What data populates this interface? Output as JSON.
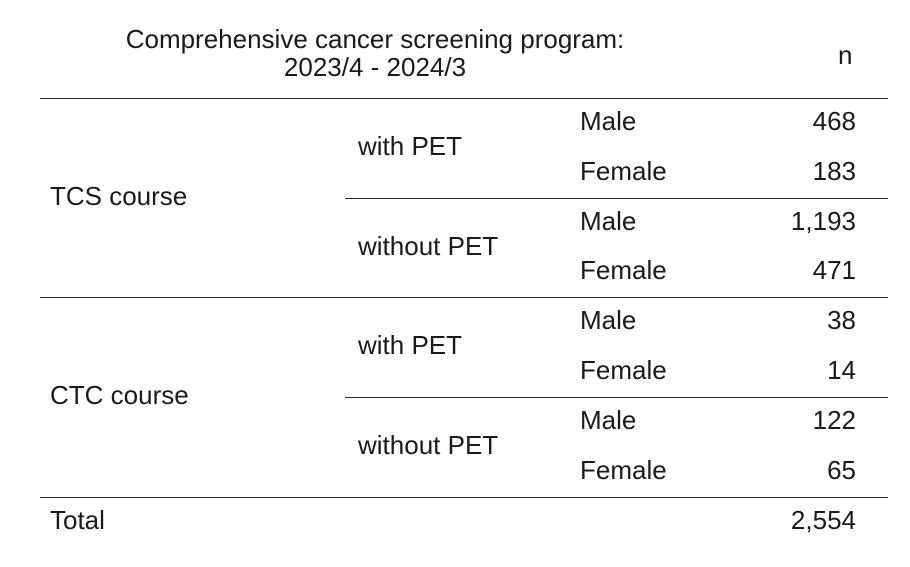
{
  "header": {
    "title_line1": "Comprehensive cancer screening program:",
    "title_line2": "2023/4 - 2024/3",
    "count_header": "n"
  },
  "groups": [
    {
      "course": "TCS course",
      "subgroups": [
        {
          "label": "with PET",
          "rows": [
            {
              "sex": "Male",
              "n": "468"
            },
            {
              "sex": "Female",
              "n": "183"
            }
          ]
        },
        {
          "label": "without PET",
          "rows": [
            {
              "sex": "Male",
              "n": "1,193"
            },
            {
              "sex": "Female",
              "n": "471"
            }
          ]
        }
      ]
    },
    {
      "course": "CTC course",
      "subgroups": [
        {
          "label": "with PET",
          "rows": [
            {
              "sex": "Male",
              "n": "38"
            },
            {
              "sex": "Female",
              "n": "14"
            }
          ]
        },
        {
          "label": "without PET",
          "rows": [
            {
              "sex": "Male",
              "n": "122"
            },
            {
              "sex": "Female",
              "n": "65"
            }
          ]
        }
      ]
    }
  ],
  "total": {
    "label": "Total",
    "n": "2,554"
  }
}
